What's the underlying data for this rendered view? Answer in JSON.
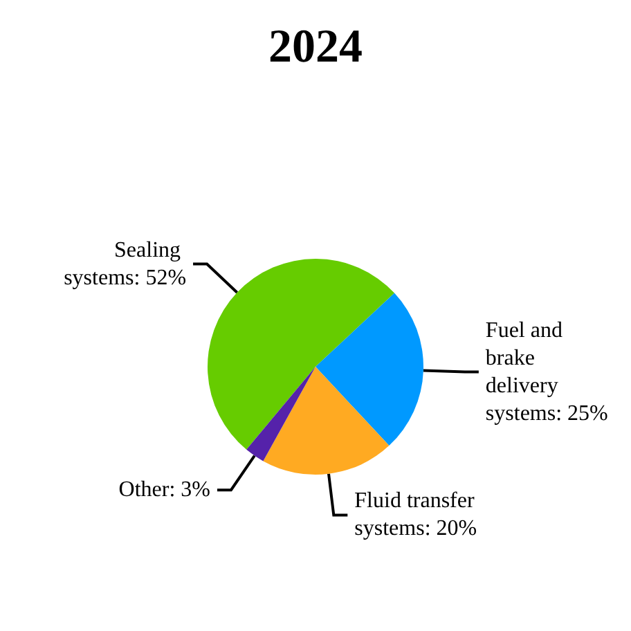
{
  "chart_data": {
    "type": "pie",
    "title": "2024",
    "categories": [
      "Sealing systems",
      "Fuel and brake delivery systems",
      "Fluid transfer systems",
      "Other"
    ],
    "values": [
      52,
      25,
      20,
      3
    ],
    "value_labels": [
      "52%",
      "25%",
      "20%",
      "3%"
    ],
    "colors": [
      "#66cc00",
      "#0099ff",
      "#ffaa22",
      "#5522aa"
    ],
    "legend": false
  }
}
